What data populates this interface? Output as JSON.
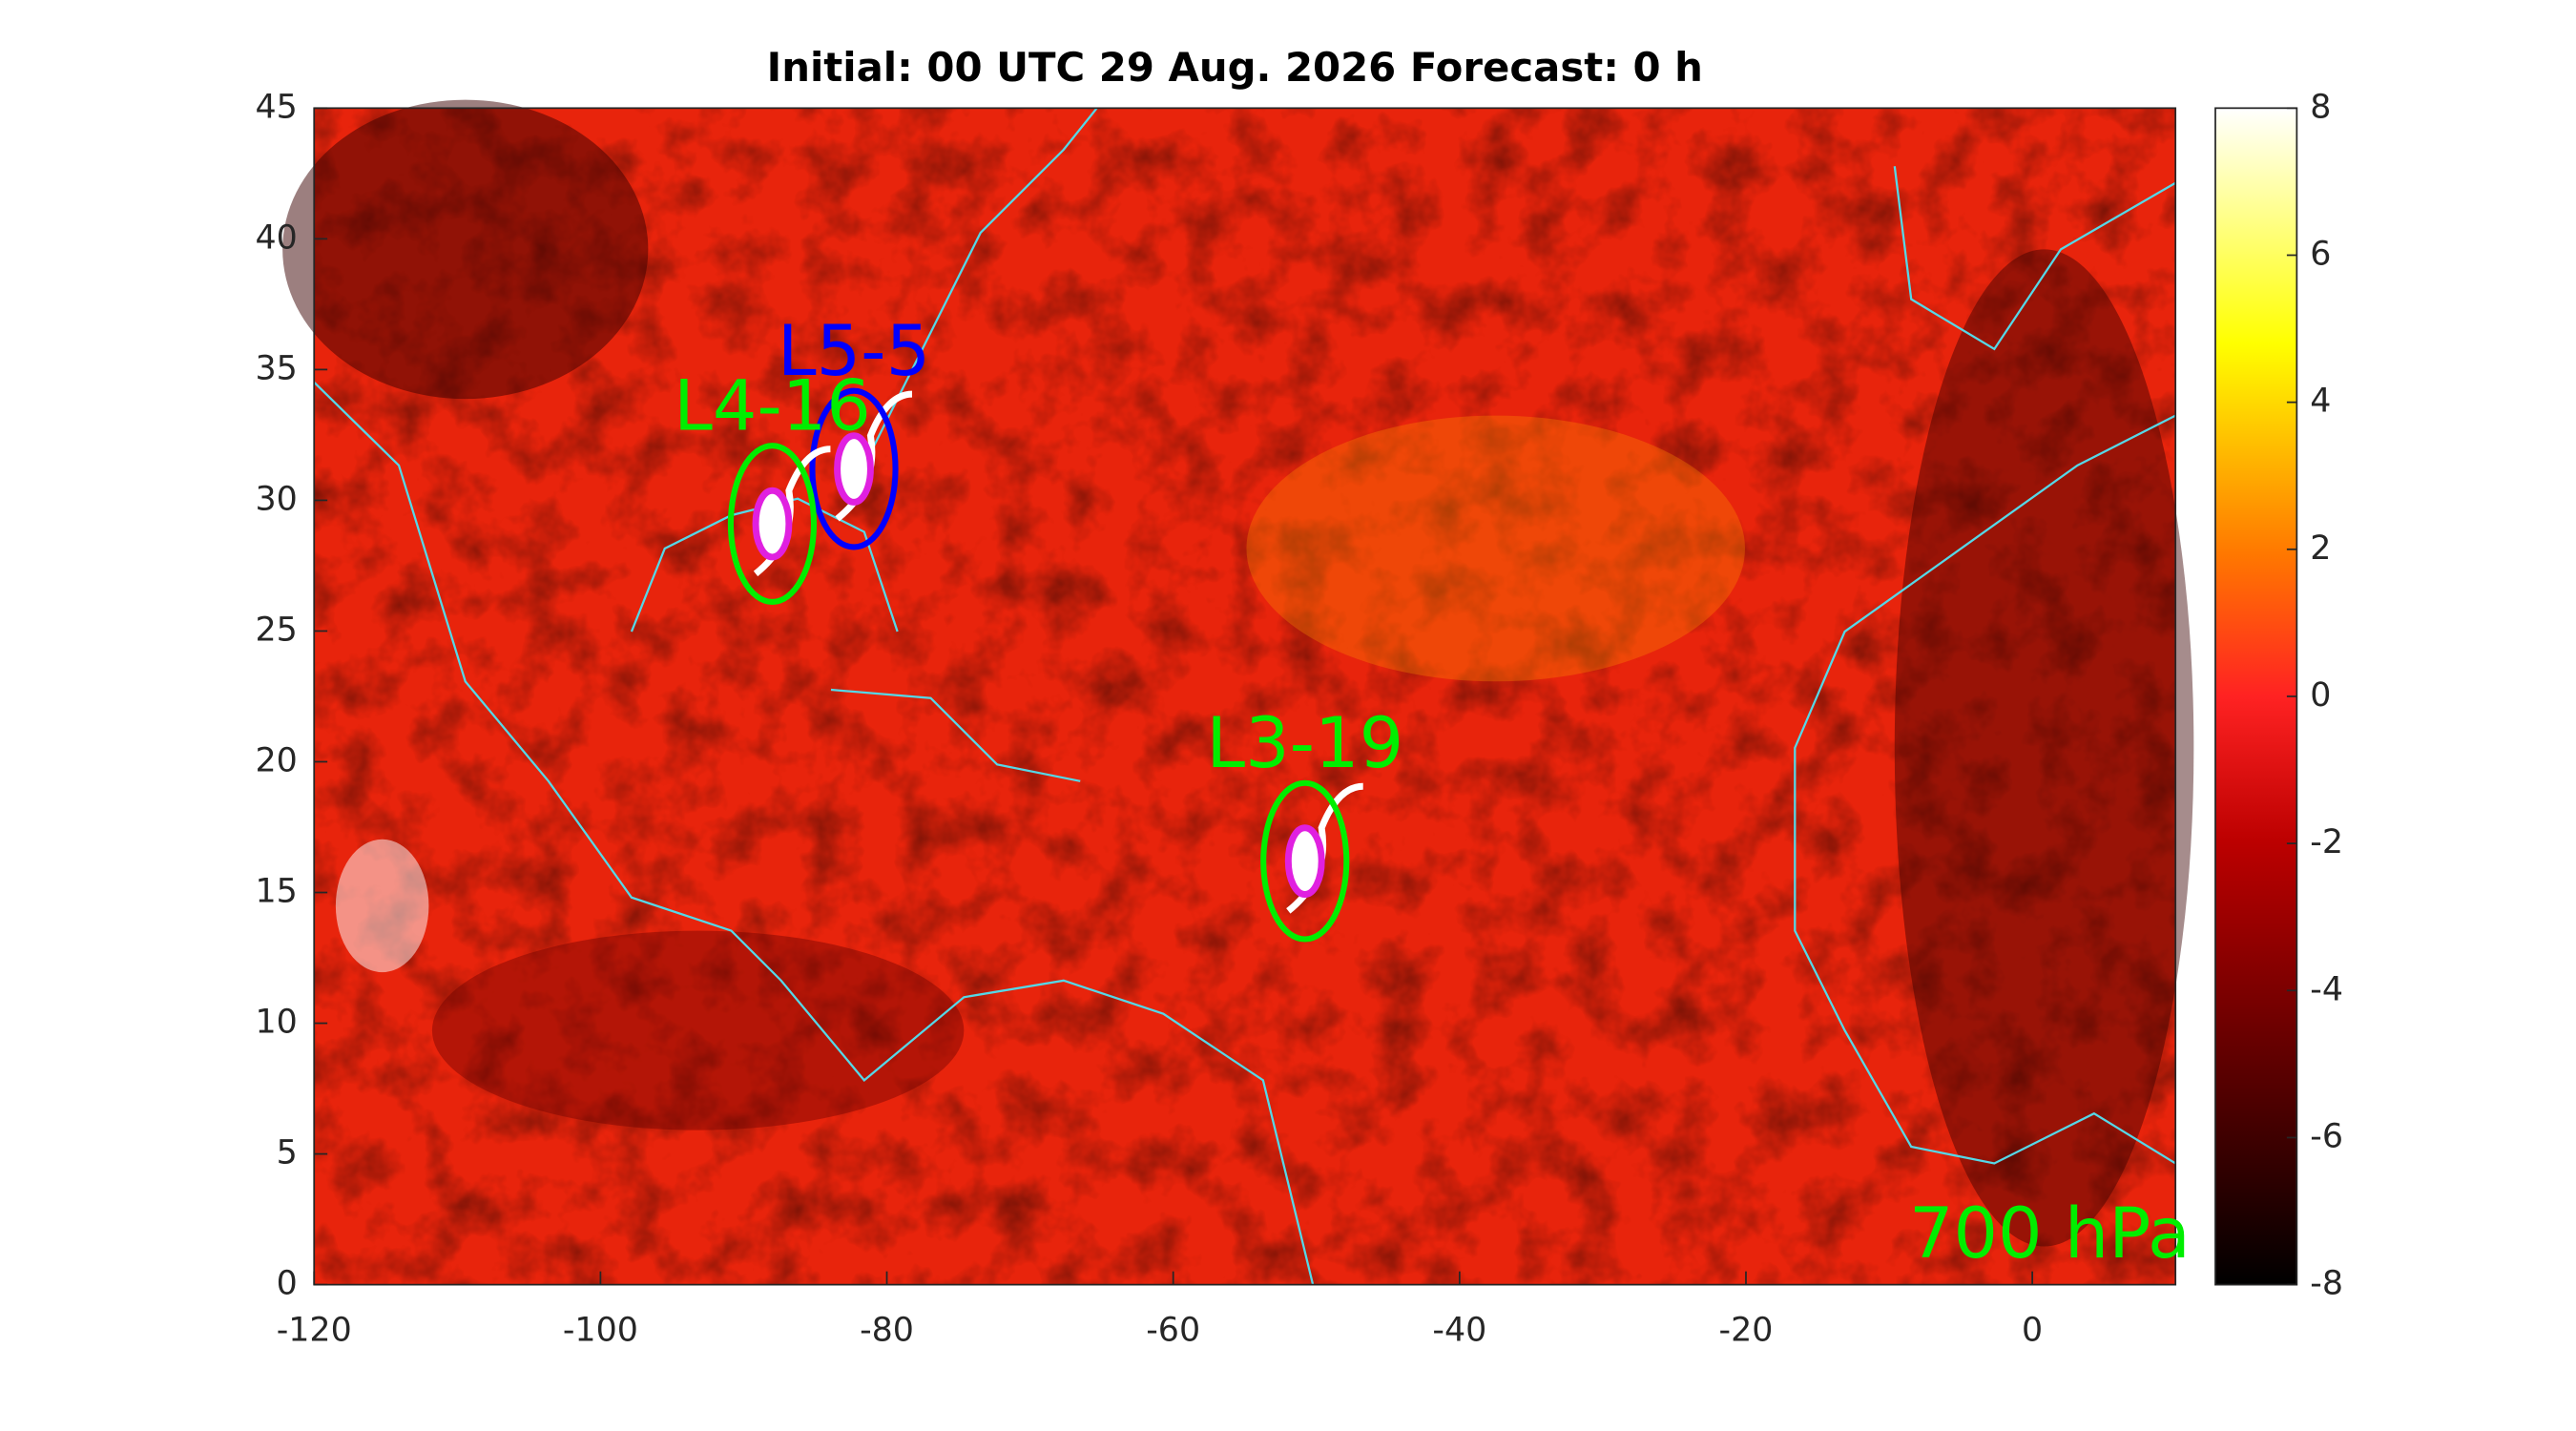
{
  "chart_data": {
    "type": "heatmap-map",
    "title": "Initial: 00 UTC 29 Aug. 2026 Forecast: 0 h",
    "xlim": [
      -120,
      10
    ],
    "xticks": [
      -120,
      -100,
      -80,
      -60,
      -40,
      -20,
      0
    ],
    "ylim": [
      0,
      45
    ],
    "yticks": [
      0,
      5,
      10,
      15,
      20,
      25,
      30,
      35,
      40,
      45
    ],
    "clim": [
      -8,
      8
    ],
    "cticks": [
      -8,
      -6,
      -4,
      -2,
      0,
      2,
      4,
      6,
      8
    ],
    "level_label": "700 hPa",
    "storms": [
      {
        "name": "L5-5",
        "color": "#0000ff",
        "lon": -82.3,
        "lat": 31.2
      },
      {
        "name": "L4-16",
        "color": "#00ee00",
        "lon": -88,
        "lat": 29.1
      },
      {
        "name": "L3-19",
        "color": "#00ee00",
        "lon": -50.8,
        "lat": 16.2
      }
    ]
  }
}
